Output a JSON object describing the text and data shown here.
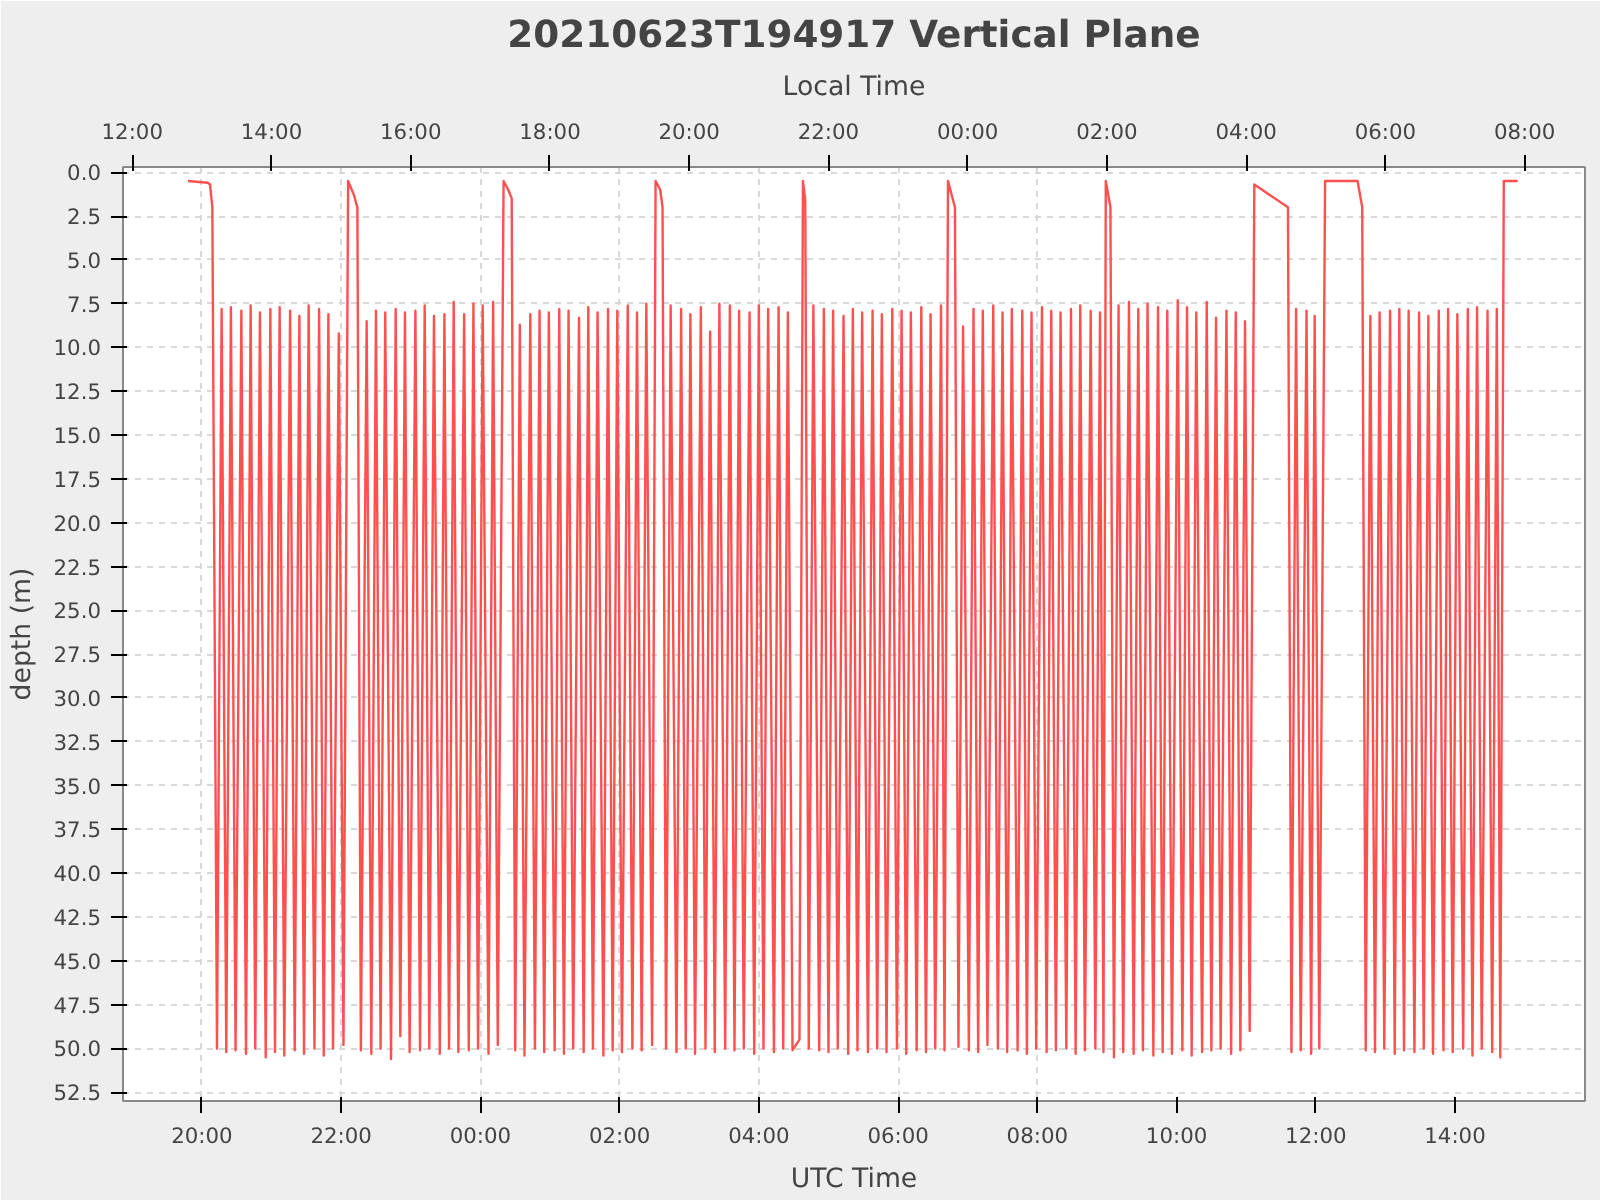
{
  "chart_data": {
    "type": "line",
    "title": "20210623T194917 Vertical Plane",
    "xlabel": "UTC Time",
    "ylabel": "depth (m)",
    "x2label": "Local Time",
    "xlim": [
      "2021-06-23T18:52",
      "2021-06-24T15:52"
    ],
    "x2lim": [
      "2021-06-23T11:52",
      "2021-06-24T08:52"
    ],
    "ylim": [
      53,
      -0.3
    ],
    "grid": true,
    "line_style": "solid",
    "xticks": [
      {
        "value": "2021-06-23T20:00",
        "label": "20:00"
      },
      {
        "value": "2021-06-23T22:00",
        "label": "22:00"
      },
      {
        "value": "2021-06-24T00:00",
        "label": "00:00"
      },
      {
        "value": "2021-06-24T02:00",
        "label": "02:00"
      },
      {
        "value": "2021-06-24T04:00",
        "label": "04:00"
      },
      {
        "value": "2021-06-24T06:00",
        "label": "06:00"
      },
      {
        "value": "2021-06-24T08:00",
        "label": "08:00"
      },
      {
        "value": "2021-06-24T10:00",
        "label": "10:00"
      },
      {
        "value": "2021-06-24T12:00",
        "label": "12:00"
      },
      {
        "value": "2021-06-24T14:00",
        "label": "14:00"
      }
    ],
    "x2ticks": [
      {
        "value": "2021-06-23T12:00",
        "label": "12:00"
      },
      {
        "value": "2021-06-23T14:00",
        "label": "14:00"
      },
      {
        "value": "2021-06-23T16:00",
        "label": "16:00"
      },
      {
        "value": "2021-06-23T18:00",
        "label": "18:00"
      },
      {
        "value": "2021-06-23T20:00",
        "label": "20:00"
      },
      {
        "value": "2021-06-23T22:00",
        "label": "22:00"
      },
      {
        "value": "2021-06-24T00:00",
        "label": "00:00"
      },
      {
        "value": "2021-06-24T02:00",
        "label": "02:00"
      },
      {
        "value": "2021-06-24T04:00",
        "label": "04:00"
      },
      {
        "value": "2021-06-24T06:00",
        "label": "06:00"
      },
      {
        "value": "2021-06-24T08:00",
        "label": "08:00"
      }
    ],
    "yticks": [
      {
        "value": 0,
        "label": "0.0"
      },
      2.5,
      {
        "value": 5,
        "label": "5.0"
      },
      7.5,
      {
        "value": 10,
        "label": "10.0"
      },
      12.5,
      {
        "value": 15,
        "label": "15.0"
      },
      17.5,
      {
        "value": 20,
        "label": "20.0"
      },
      22.5,
      {
        "value": 25,
        "label": "25.0"
      },
      27.5,
      {
        "value": 30,
        "label": "30.0"
      },
      32.5,
      {
        "value": 35,
        "label": "35.0"
      },
      37.5,
      {
        "value": 40,
        "label": "40.0"
      },
      42.5,
      {
        "value": 45,
        "label": "45.0"
      },
      47.5,
      {
        "value": 50,
        "label": "50.0"
      },
      52.5
    ],
    "series": [
      {
        "color": "#ff5050",
        "x": [
          "2021-06-23T19:48",
          "2021-06-23T20:05",
          "2021-06-23T20:07",
          "2021-06-23T20:09",
          "2021-06-23T20:13",
          "2021-06-23T20:17",
          "2021-06-23T20:21",
          "2021-06-23T20:25",
          "2021-06-23T20:29",
          "2021-06-23T20:34",
          "2021-06-23T20:38",
          "2021-06-23T20:42",
          "2021-06-23T20:46",
          "2021-06-23T20:50",
          "2021-06-23T20:55",
          "2021-06-23T20:59",
          "2021-06-23T21:03",
          "2021-06-23T21:07",
          "2021-06-23T21:11",
          "2021-06-23T21:16",
          "2021-06-23T21:20",
          "2021-06-23T21:24",
          "2021-06-23T21:28",
          "2021-06-23T21:32",
          "2021-06-23T21:37",
          "2021-06-23T21:41",
          "2021-06-23T21:45",
          "2021-06-23T21:49",
          "2021-06-23T21:53",
          "2021-06-23T21:58",
          "2021-06-23T22:02",
          "2021-06-23T22:06",
          "2021-06-23T22:11",
          "2021-06-23T22:14",
          "2021-06-23T22:17",
          "2021-06-23T22:22",
          "2021-06-23T22:26",
          "2021-06-23T22:30",
          "2021-06-23T22:34",
          "2021-06-23T22:38",
          "2021-06-23T22:43",
          "2021-06-23T22:47",
          "2021-06-23T22:51",
          "2021-06-23T22:55",
          "2021-06-23T22:59",
          "2021-06-23T23:04",
          "2021-06-23T23:08",
          "2021-06-23T23:12",
          "2021-06-23T23:16",
          "2021-06-23T23:20",
          "2021-06-23T23:25",
          "2021-06-23T23:29",
          "2021-06-23T23:33",
          "2021-06-23T23:37",
          "2021-06-23T23:41",
          "2021-06-23T23:46",
          "2021-06-23T23:50",
          "2021-06-23T23:54",
          "2021-06-23T23:58",
          "2021-06-24T00:02",
          "2021-06-24T00:07",
          "2021-06-24T00:11",
          "2021-06-24T00:15",
          "2021-06-24T00:20",
          "2021-06-24T00:24",
          "2021-06-24T00:27",
          "2021-06-24T00:30",
          "2021-06-24T00:34",
          "2021-06-24T00:38",
          "2021-06-24T00:43",
          "2021-06-24T00:47",
          "2021-06-24T00:51",
          "2021-06-24T00:55",
          "2021-06-24T00:59",
          "2021-06-24T01:04",
          "2021-06-24T01:08",
          "2021-06-24T01:12",
          "2021-06-24T01:16",
          "2021-06-24T01:20",
          "2021-06-24T01:25",
          "2021-06-24T01:29",
          "2021-06-24T01:33",
          "2021-06-24T01:37",
          "2021-06-24T01:41",
          "2021-06-24T01:46",
          "2021-06-24T01:50",
          "2021-06-24T01:54",
          "2021-06-24T01:58",
          "2021-06-24T02:02",
          "2021-06-24T02:07",
          "2021-06-24T02:11",
          "2021-06-24T02:15",
          "2021-06-24T02:19",
          "2021-06-24T02:23",
          "2021-06-24T02:28",
          "2021-06-24T02:31",
          "2021-06-24T02:35",
          "2021-06-24T02:37",
          "2021-06-24T02:40",
          "2021-06-24T02:44",
          "2021-06-24T02:49",
          "2021-06-24T02:53",
          "2021-06-24T02:57",
          "2021-06-24T03:01",
          "2021-06-24T03:05",
          "2021-06-24T03:10",
          "2021-06-24T03:14",
          "2021-06-24T03:18",
          "2021-06-24T03:22",
          "2021-06-24T03:26",
          "2021-06-24T03:31",
          "2021-06-24T03:35",
          "2021-06-24T03:39",
          "2021-06-24T03:43",
          "2021-06-24T03:47",
          "2021-06-24T03:52",
          "2021-06-24T03:56",
          "2021-06-24T04:00",
          "2021-06-24T04:04",
          "2021-06-24T04:08",
          "2021-06-24T04:13",
          "2021-06-24T04:17",
          "2021-06-24T04:21",
          "2021-06-24T04:25",
          "2021-06-24T04:29",
          "2021-06-24T04:35",
          "2021-06-24T04:38",
          "2021-06-24T04:40",
          "2021-06-24T04:43",
          "2021-06-24T04:47",
          "2021-06-24T04:52",
          "2021-06-24T04:56",
          "2021-06-24T05:00",
          "2021-06-24T05:04",
          "2021-06-24T05:08",
          "2021-06-24T05:13",
          "2021-06-24T05:17",
          "2021-06-24T05:21",
          "2021-06-24T05:25",
          "2021-06-24T05:29",
          "2021-06-24T05:34",
          "2021-06-24T05:38",
          "2021-06-24T05:42",
          "2021-06-24T05:46",
          "2021-06-24T05:50",
          "2021-06-24T05:55",
          "2021-06-24T05:59",
          "2021-06-24T06:03",
          "2021-06-24T06:07",
          "2021-06-24T06:11",
          "2021-06-24T06:16",
          "2021-06-24T06:20",
          "2021-06-24T06:24",
          "2021-06-24T06:28",
          "2021-06-24T06:32",
          "2021-06-24T06:37",
          "2021-06-24T06:40",
          "2021-06-24T06:43",
          "2021-06-24T06:49",
          "2021-06-24T06:52",
          "2021-06-24T06:56",
          "2021-06-24T07:01",
          "2021-06-24T07:05",
          "2021-06-24T07:09",
          "2021-06-24T07:13",
          "2021-06-24T07:17",
          "2021-06-24T07:22",
          "2021-06-24T07:26",
          "2021-06-24T07:30",
          "2021-06-24T07:34",
          "2021-06-24T07:38",
          "2021-06-24T07:43",
          "2021-06-24T07:47",
          "2021-06-24T07:51",
          "2021-06-24T07:55",
          "2021-06-24T07:59",
          "2021-06-24T08:04",
          "2021-06-24T08:08",
          "2021-06-24T08:12",
          "2021-06-24T08:16",
          "2021-06-24T08:20",
          "2021-06-24T08:25",
          "2021-06-24T08:29",
          "2021-06-24T08:33",
          "2021-06-24T08:37",
          "2021-06-24T08:41",
          "2021-06-24T08:46",
          "2021-06-24T08:50",
          "2021-06-24T08:54",
          "2021-06-24T08:57",
          "2021-06-24T08:59",
          "2021-06-24T09:03",
          "2021-06-24T09:06",
          "2021-06-24T09:10",
          "2021-06-24T09:14",
          "2021-06-24T09:19",
          "2021-06-24T09:23",
          "2021-06-24T09:27",
          "2021-06-24T09:31",
          "2021-06-24T09:35",
          "2021-06-24T09:40",
          "2021-06-24T09:44",
          "2021-06-24T09:48",
          "2021-06-24T09:52",
          "2021-06-24T09:56",
          "2021-06-24T10:01",
          "2021-06-24T10:05",
          "2021-06-24T10:09",
          "2021-06-24T10:13",
          "2021-06-24T10:17",
          "2021-06-24T10:22",
          "2021-06-24T10:26",
          "2021-06-24T10:30",
          "2021-06-24T10:34",
          "2021-06-24T10:38",
          "2021-06-24T10:43",
          "2021-06-24T10:47",
          "2021-06-24T10:51",
          "2021-06-24T10:55",
          "2021-06-24T10:59",
          "2021-06-24T11:03",
          "2021-06-24T11:07",
          "2021-06-24T11:36",
          "2021-06-24T11:39",
          "2021-06-24T11:43",
          "2021-06-24T11:47",
          "2021-06-24T11:52",
          "2021-06-24T11:56",
          "2021-06-24T11:59",
          "2021-06-24T12:03",
          "2021-06-24T12:08",
          "2021-06-24T12:36",
          "2021-06-24T12:40",
          "2021-06-24T12:43",
          "2021-06-24T12:47",
          "2021-06-24T12:51",
          "2021-06-24T12:55",
          "2021-06-24T12:59",
          "2021-06-24T13:04",
          "2021-06-24T13:08",
          "2021-06-24T13:12",
          "2021-06-24T13:16",
          "2021-06-24T13:20",
          "2021-06-24T13:25",
          "2021-06-24T13:29",
          "2021-06-24T13:33",
          "2021-06-24T13:37",
          "2021-06-24T13:41",
          "2021-06-24T13:46",
          "2021-06-24T13:50",
          "2021-06-24T13:54",
          "2021-06-24T13:58",
          "2021-06-24T14:02",
          "2021-06-24T14:07",
          "2021-06-24T14:11",
          "2021-06-24T14:15",
          "2021-06-24T14:19",
          "2021-06-24T14:23",
          "2021-06-24T14:28",
          "2021-06-24T14:32",
          "2021-06-24T14:36",
          "2021-06-24T14:39",
          "2021-06-24T14:42",
          "2021-06-24T14:54"
        ],
        "values": [
          0.5,
          0.6,
          0.7,
          2.0,
          50.0,
          7.8,
          50.2,
          7.7,
          50.1,
          7.9,
          50.3,
          7.6,
          50.0,
          8.0,
          50.5,
          7.8,
          50.2,
          7.7,
          50.4,
          7.9,
          50.1,
          8.2,
          50.3,
          7.6,
          50.0,
          7.8,
          50.4,
          8.1,
          50.0,
          9.2,
          49.8,
          0.5,
          1.3,
          2.0,
          50.1,
          8.5,
          50.3,
          7.9,
          50.0,
          8.0,
          50.6,
          7.8,
          49.3,
          8.0,
          50.2,
          7.9,
          50.1,
          7.6,
          50.0,
          8.2,
          50.3,
          8.1,
          50.0,
          7.4,
          50.2,
          8.1,
          50.1,
          7.5,
          50.0,
          7.6,
          50.3,
          7.4,
          49.8,
          0.5,
          1.0,
          1.5,
          50.1,
          8.7,
          50.4,
          8.1,
          50.0,
          7.9,
          50.2,
          8.0,
          50.1,
          7.8,
          50.3,
          7.9,
          50.0,
          8.3,
          50.2,
          7.7,
          50.0,
          8.0,
          50.4,
          7.8,
          50.1,
          7.9,
          50.2,
          7.6,
          50.0,
          8.0,
          50.1,
          7.5,
          49.8,
          0.5,
          1.0,
          2.0,
          50.0,
          7.6,
          50.2,
          7.8,
          50.0,
          8.1,
          50.3,
          7.7,
          50.0,
          9.1,
          50.2,
          7.5,
          50.0,
          7.6,
          50.1,
          7.9,
          50.0,
          8.0,
          50.3,
          7.6,
          50.0,
          7.8,
          50.2,
          7.7,
          50.0,
          8.0,
          50.1,
          49.5,
          0.5,
          1.6,
          50.0,
          7.6,
          50.1,
          7.8,
          50.2,
          7.9,
          50.0,
          8.2,
          50.3,
          7.8,
          50.1,
          8.0,
          50.2,
          7.9,
          50.0,
          8.1,
          50.2,
          7.8,
          50.0,
          7.9,
          50.3,
          8.0,
          50.1,
          7.7,
          50.2,
          8.1,
          50.0,
          7.6,
          50.1,
          0.5,
          2.0,
          49.9,
          8.8,
          50.1,
          7.8,
          50.2,
          7.9,
          49.8,
          7.6,
          50.0,
          8.0,
          50.2,
          7.8,
          50.1,
          7.9,
          50.3,
          8.0,
          50.0,
          7.7,
          50.2,
          7.9,
          50.1,
          8.0,
          50.0,
          7.8,
          50.3,
          7.6,
          50.1,
          7.9,
          50.0,
          8.0,
          50.2,
          0.5,
          2.0,
          50.5,
          7.6,
          50.2,
          7.4,
          50.3,
          7.8,
          50.1,
          7.5,
          50.4,
          7.7,
          50.2,
          7.9,
          50.3,
          7.3,
          50.1,
          7.7,
          50.4,
          8.0,
          50.2,
          7.4,
          50.1,
          8.3,
          50.0,
          7.9,
          50.3,
          8.0,
          50.1,
          8.5,
          49.0,
          0.7,
          2.0,
          50.2,
          7.8,
          50.1,
          7.9,
          50.3,
          8.2,
          50.0,
          0.5,
          0.5,
          2.0,
          50.1,
          8.2,
          50.2,
          8.0,
          50.0,
          7.9,
          50.3,
          7.8,
          50.1,
          7.9,
          50.2,
          8.0,
          50.0,
          8.2,
          50.3,
          7.9,
          50.1,
          7.8,
          50.2,
          8.1,
          50.0,
          7.8,
          50.4,
          7.7,
          50.0,
          7.9,
          50.2,
          7.8,
          50.5,
          0.5,
          0.5
        ]
      }
    ]
  }
}
